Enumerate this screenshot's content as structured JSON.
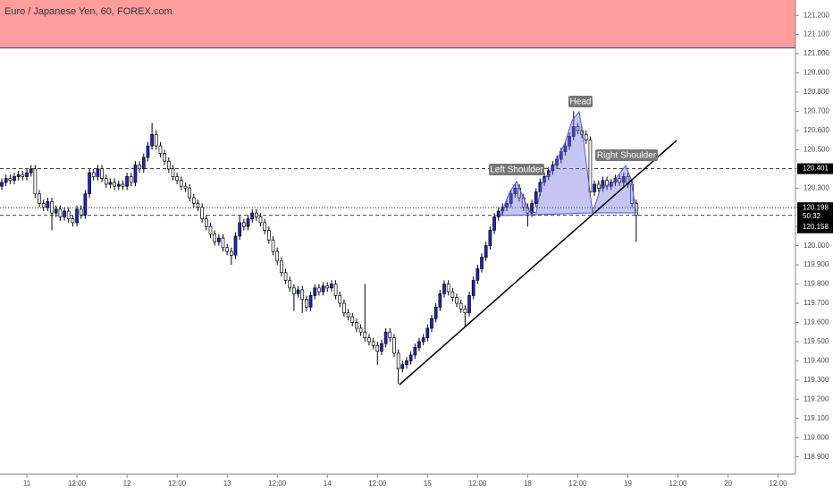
{
  "chart_data": {
    "type": "candlestick",
    "title": "Euro / Japanese Yen, 60, FOREX.com",
    "up_color": "#2424c8",
    "down_color": "#ffffff",
    "wick_color": "#000000",
    "xlim": [
      -0.43,
      190.16
    ],
    "ylim": [
      118.81,
      121.28
    ],
    "xticks": [
      {
        "value": 6,
        "label": "11"
      },
      {
        "value": 18,
        "label": "12:00"
      },
      {
        "value": 30,
        "label": "12"
      },
      {
        "value": 42,
        "label": "12:00"
      },
      {
        "value": 54,
        "label": "13"
      },
      {
        "value": 66,
        "label": "12:00"
      },
      {
        "value": 78,
        "label": "14"
      },
      {
        "value": 90,
        "label": "12:00"
      },
      {
        "value": 102,
        "label": "15"
      },
      {
        "value": 114,
        "label": "12:00"
      },
      {
        "value": 126,
        "label": "18"
      },
      {
        "value": 138,
        "label": "12:00"
      },
      {
        "value": 150,
        "label": "19"
      },
      {
        "value": 162,
        "label": "12:00"
      },
      {
        "value": 174,
        "label": "20"
      },
      {
        "value": 186,
        "label": "12:00"
      }
    ],
    "yticks": [
      {
        "value": 118.9,
        "label": "118.900"
      },
      {
        "value": 119.0,
        "label": "119.000"
      },
      {
        "value": 119.1,
        "label": "119.100"
      },
      {
        "value": 119.2,
        "label": "119.200"
      },
      {
        "value": 119.3,
        "label": "119.300"
      },
      {
        "value": 119.4,
        "label": "119.400"
      },
      {
        "value": 119.5,
        "label": "119.500"
      },
      {
        "value": 119.6,
        "label": "119.600"
      },
      {
        "value": 119.7,
        "label": "119.700"
      },
      {
        "value": 119.8,
        "label": "119.800"
      },
      {
        "value": 119.9,
        "label": "119.900"
      },
      {
        "value": 120.0,
        "label": "120.000"
      },
      {
        "value": 120.1,
        "label": "120.100"
      },
      {
        "value": 120.2,
        "label": "120.200"
      },
      {
        "value": 120.3,
        "label": "120.300"
      },
      {
        "value": 120.4,
        "label": "120.400"
      },
      {
        "value": 120.5,
        "label": "120.500"
      },
      {
        "value": 120.6,
        "label": "120.600"
      },
      {
        "value": 120.7,
        "label": "120.700"
      },
      {
        "value": 120.8,
        "label": "120.800"
      },
      {
        "value": 120.9,
        "label": "120.900"
      },
      {
        "value": 121.0,
        "label": "121.000"
      },
      {
        "value": 121.1,
        "label": "121.100"
      },
      {
        "value": 121.2,
        "label": "121.200"
      }
    ],
    "zone": {
      "from": 121.03,
      "to": 121.28,
      "color": "#ff9d9d"
    },
    "price_lines": [
      {
        "value": 120.401,
        "label": "120.401",
        "style": "dashed"
      },
      {
        "value": 120.198,
        "label": "120.198",
        "style": "dotted"
      },
      {
        "value": 120.158,
        "label": "120.158",
        "style": "dashed",
        "countdown": "50:32"
      }
    ],
    "annotations": [
      "Left Shoulder",
      "Head",
      "Right Shoulder"
    ],
    "open": [
      120.31,
      120.33,
      120.35,
      120.34,
      120.36,
      120.37,
      120.36,
      120.38,
      120.4,
      120.27,
      120.22,
      120.2,
      120.23,
      120.17,
      120.19,
      120.15,
      120.18,
      120.14,
      120.12,
      120.19,
      120.16,
      120.27,
      120.38,
      120.36,
      120.4,
      120.35,
      120.32,
      120.33,
      120.31,
      120.32,
      120.31,
      120.36,
      120.33,
      120.42,
      120.4,
      120.46,
      120.52,
      120.58,
      120.52,
      120.48,
      120.44,
      120.4,
      120.36,
      120.34,
      120.31,
      120.3,
      120.25,
      120.22,
      120.2,
      120.14,
      120.1,
      120.06,
      120.02,
      120.04,
      119.99,
      119.97,
      119.95,
      120.05,
      120.12,
      120.1,
      120.14,
      120.17,
      120.15,
      120.12,
      120.08,
      120.03,
      119.97,
      119.92,
      119.86,
      119.82,
      119.78,
      119.75,
      119.77,
      119.72,
      119.68,
      119.74,
      119.78,
      119.76,
      119.79,
      119.78,
      119.8,
      119.74,
      119.7,
      119.65,
      119.63,
      119.6,
      119.57,
      119.55,
      119.52,
      119.5,
      119.48,
      119.45,
      119.49,
      119.55,
      119.52,
      119.44,
      119.36,
      119.38,
      119.4,
      119.43,
      119.47,
      119.5,
      119.52,
      119.57,
      119.62,
      119.68,
      119.75,
      119.8,
      119.76,
      119.73,
      119.7,
      119.67,
      119.65,
      119.74,
      119.82,
      119.88,
      119.94,
      120.0,
      120.08,
      120.15,
      120.18,
      120.2,
      120.22,
      120.27,
      120.3,
      120.25,
      120.2,
      120.17,
      120.22,
      120.28,
      120.33,
      120.36,
      120.39,
      120.42,
      120.45,
      120.49,
      120.52,
      120.57,
      120.62,
      120.6,
      120.58,
      120.55,
      120.28,
      120.32,
      120.3,
      120.34,
      120.31,
      120.33,
      120.35,
      120.33,
      120.36,
      120.32,
      120.22
    ],
    "high": [
      120.35,
      120.37,
      120.37,
      120.38,
      120.39,
      120.39,
      120.4,
      120.42,
      120.42,
      120.29,
      120.24,
      120.25,
      120.25,
      120.21,
      120.21,
      120.2,
      120.2,
      120.16,
      120.21,
      120.21,
      120.29,
      120.4,
      120.4,
      120.42,
      120.42,
      120.37,
      120.35,
      120.35,
      120.34,
      120.34,
      120.38,
      120.38,
      120.44,
      120.44,
      120.48,
      120.54,
      120.64,
      120.6,
      120.54,
      120.5,
      120.46,
      120.42,
      120.38,
      120.36,
      120.33,
      120.32,
      120.27,
      120.24,
      120.22,
      120.16,
      120.12,
      120.08,
      120.06,
      120.06,
      120.01,
      119.99,
      120.07,
      120.16,
      120.14,
      120.16,
      120.19,
      120.19,
      120.17,
      120.14,
      120.1,
      120.05,
      119.99,
      119.94,
      119.88,
      119.84,
      119.8,
      119.79,
      119.79,
      119.74,
      119.76,
      119.8,
      119.8,
      119.81,
      119.81,
      119.82,
      119.82,
      119.76,
      119.72,
      119.67,
      119.65,
      119.62,
      119.59,
      119.8,
      119.54,
      119.52,
      119.5,
      119.51,
      119.57,
      119.57,
      119.54,
      119.46,
      119.4,
      119.42,
      119.45,
      119.49,
      119.52,
      119.54,
      119.59,
      119.64,
      119.7,
      119.77,
      119.82,
      119.82,
      119.78,
      119.75,
      119.72,
      119.69,
      119.76,
      119.84,
      119.9,
      119.96,
      120.02,
      120.1,
      120.17,
      120.2,
      120.22,
      120.24,
      120.29,
      120.32,
      120.32,
      120.27,
      120.22,
      120.24,
      120.3,
      120.35,
      120.38,
      120.41,
      120.44,
      120.47,
      120.51,
      120.54,
      120.59,
      120.7,
      120.64,
      120.62,
      120.6,
      120.57,
      120.34,
      120.34,
      120.36,
      120.36,
      120.35,
      120.37,
      120.37,
      120.38,
      120.38,
      120.34,
      120.24
    ],
    "low": [
      120.29,
      120.31,
      120.32,
      120.32,
      120.34,
      120.34,
      120.34,
      120.36,
      120.25,
      120.2,
      120.18,
      120.18,
      120.08,
      120.15,
      120.13,
      120.13,
      120.12,
      120.1,
      120.1,
      120.14,
      120.14,
      120.25,
      120.34,
      120.34,
      120.33,
      120.3,
      120.3,
      120.29,
      120.29,
      120.29,
      120.29,
      120.31,
      120.31,
      120.38,
      120.38,
      120.44,
      120.5,
      120.5,
      120.46,
      120.42,
      120.38,
      120.34,
      120.32,
      120.29,
      120.28,
      120.23,
      120.2,
      120.18,
      120.12,
      120.08,
      120.04,
      120.0,
      120.0,
      119.97,
      119.95,
      119.9,
      119.93,
      120.03,
      120.08,
      120.08,
      120.12,
      120.13,
      120.1,
      120.06,
      120.01,
      119.95,
      119.9,
      119.84,
      119.8,
      119.76,
      119.66,
      119.73,
      119.65,
      119.66,
      119.66,
      119.72,
      119.74,
      119.74,
      119.76,
      119.76,
      119.72,
      119.68,
      119.63,
      119.61,
      119.58,
      119.55,
      119.53,
      119.5,
      119.48,
      119.46,
      119.38,
      119.43,
      119.47,
      119.5,
      119.42,
      119.28,
      119.34,
      119.36,
      119.38,
      119.41,
      119.45,
      119.48,
      119.5,
      119.55,
      119.6,
      119.66,
      119.73,
      119.74,
      119.71,
      119.68,
      119.65,
      119.58,
      119.63,
      119.72,
      119.8,
      119.86,
      119.92,
      119.98,
      120.06,
      120.13,
      120.16,
      120.18,
      120.2,
      120.25,
      120.23,
      120.18,
      120.1,
      120.15,
      120.2,
      120.26,
      120.31,
      120.34,
      120.37,
      120.4,
      120.43,
      120.47,
      120.5,
      120.55,
      120.58,
      120.56,
      120.53,
      120.26,
      120.26,
      120.28,
      120.28,
      120.29,
      120.29,
      120.31,
      120.31,
      120.31,
      120.3,
      120.2,
      120.02
    ],
    "close": [
      120.33,
      120.35,
      120.34,
      120.36,
      120.37,
      120.36,
      120.38,
      120.4,
      120.27,
      120.22,
      120.2,
      120.23,
      120.17,
      120.19,
      120.15,
      120.18,
      120.14,
      120.12,
      120.19,
      120.16,
      120.27,
      120.38,
      120.36,
      120.4,
      120.35,
      120.32,
      120.33,
      120.31,
      120.32,
      120.31,
      120.36,
      120.33,
      120.42,
      120.4,
      120.46,
      120.52,
      120.58,
      120.52,
      120.48,
      120.44,
      120.4,
      120.36,
      120.34,
      120.31,
      120.3,
      120.25,
      120.22,
      120.2,
      120.14,
      120.1,
      120.06,
      120.02,
      120.04,
      119.99,
      119.97,
      119.95,
      120.05,
      120.12,
      120.1,
      120.14,
      120.17,
      120.15,
      120.12,
      120.08,
      120.03,
      119.97,
      119.92,
      119.86,
      119.82,
      119.78,
      119.75,
      119.77,
      119.72,
      119.68,
      119.74,
      119.78,
      119.76,
      119.79,
      119.78,
      119.8,
      119.74,
      119.7,
      119.65,
      119.63,
      119.6,
      119.57,
      119.55,
      119.52,
      119.5,
      119.48,
      119.45,
      119.49,
      119.55,
      119.52,
      119.44,
      119.36,
      119.38,
      119.4,
      119.43,
      119.47,
      119.5,
      119.52,
      119.57,
      119.62,
      119.68,
      119.75,
      119.8,
      119.76,
      119.73,
      119.7,
      119.67,
      119.65,
      119.74,
      119.82,
      119.88,
      119.94,
      120.0,
      120.08,
      120.15,
      120.18,
      120.2,
      120.22,
      120.27,
      120.3,
      120.25,
      120.2,
      120.17,
      120.22,
      120.28,
      120.33,
      120.36,
      120.39,
      120.42,
      120.45,
      120.49,
      120.52,
      120.57,
      120.62,
      120.6,
      120.58,
      120.55,
      120.28,
      120.32,
      120.3,
      120.34,
      120.31,
      120.33,
      120.35,
      120.33,
      120.36,
      120.32,
      120.22,
      120.158
    ]
  }
}
